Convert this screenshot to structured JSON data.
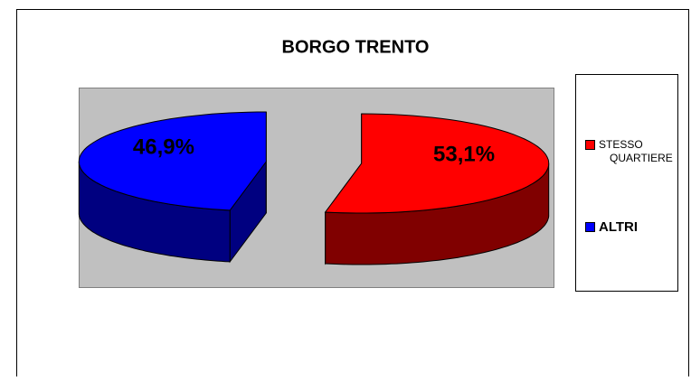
{
  "chart_data": {
    "type": "pie3d",
    "title": "BORGO TRENTO",
    "series": [
      {
        "name": "STESSO QUARTIERE",
        "color": "#ff0000",
        "values": [
          53.1
        ],
        "value_labels": [
          "53,1%"
        ]
      },
      {
        "name": "ALTRI",
        "color": "#0000ff",
        "values": [
          46.9
        ],
        "value_labels": [
          "46,9%"
        ]
      }
    ],
    "legend": "right"
  }
}
